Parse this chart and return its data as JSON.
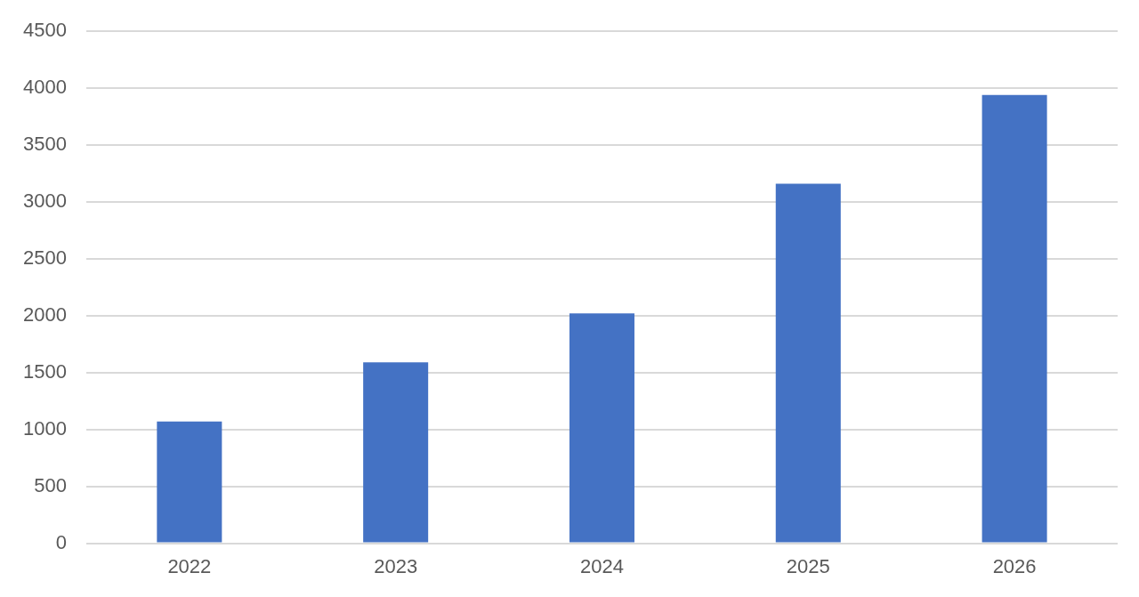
{
  "chart_data": {
    "type": "bar",
    "categories": [
      "2022",
      "2023",
      "2024",
      "2025",
      "2026"
    ],
    "values": [
      1070,
      1590,
      2020,
      3160,
      3940
    ],
    "color": "#4472c4",
    "ylim": [
      0,
      4500
    ],
    "yticks": [
      0,
      500,
      1000,
      1500,
      2000,
      2500,
      3000,
      3500,
      4000,
      4500
    ],
    "grid": "y",
    "legend": false
  }
}
